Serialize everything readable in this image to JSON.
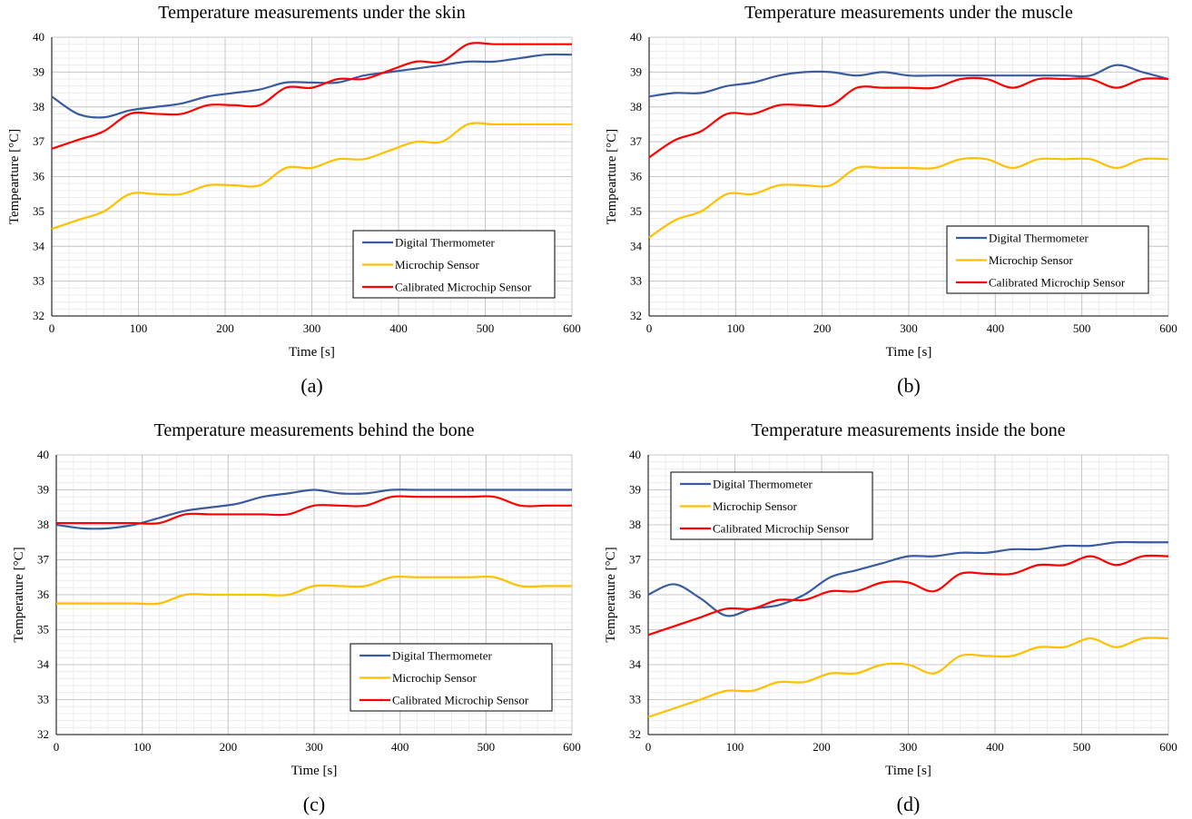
{
  "series_colors": [
    "#3a5ba0",
    "#ffc000",
    "#ff0000"
  ],
  "chart_data": [
    {
      "type": "line",
      "panel_label": "(a)",
      "title": "Temperature measurements under the skin",
      "xlabel": "Time [s]",
      "ylabel": "Tempearture [°C]",
      "xlim": [
        0,
        600
      ],
      "ylim": [
        32,
        40
      ],
      "xticks": [
        0,
        100,
        200,
        300,
        400,
        500,
        600
      ],
      "yticks": [
        32,
        33,
        34,
        35,
        36,
        37,
        38,
        39,
        40
      ],
      "grid": true,
      "legend": "bottom-right",
      "series": [
        {
          "name": "Digital Thermometer",
          "x": [
            0,
            30,
            60,
            90,
            120,
            150,
            180,
            210,
            240,
            270,
            300,
            330,
            360,
            390,
            420,
            450,
            480,
            510,
            540,
            570,
            600
          ],
          "y": [
            38.3,
            37.8,
            37.7,
            37.9,
            38.0,
            38.1,
            38.3,
            38.4,
            38.5,
            38.7,
            38.7,
            38.7,
            38.9,
            39.0,
            39.1,
            39.2,
            39.3,
            39.3,
            39.4,
            39.5,
            39.5
          ]
        },
        {
          "name": "Microchip Sensor",
          "x": [
            0,
            30,
            60,
            90,
            120,
            150,
            180,
            210,
            240,
            270,
            300,
            330,
            360,
            390,
            420,
            450,
            480,
            510,
            540,
            570,
            600
          ],
          "y": [
            34.5,
            34.75,
            35.0,
            35.5,
            35.5,
            35.5,
            35.75,
            35.75,
            35.75,
            36.25,
            36.25,
            36.5,
            36.5,
            36.75,
            37.0,
            37.0,
            37.5,
            37.5,
            37.5,
            37.5,
            37.5
          ]
        },
        {
          "name": "Calibrated Microchip Sensor",
          "x": [
            0,
            30,
            60,
            90,
            120,
            150,
            180,
            210,
            240,
            270,
            300,
            330,
            360,
            390,
            420,
            450,
            480,
            510,
            540,
            570,
            600
          ],
          "y": [
            36.8,
            37.05,
            37.3,
            37.8,
            37.8,
            37.8,
            38.05,
            38.05,
            38.05,
            38.55,
            38.55,
            38.8,
            38.8,
            39.05,
            39.3,
            39.3,
            39.8,
            39.8,
            39.8,
            39.8,
            39.8
          ]
        }
      ]
    },
    {
      "type": "line",
      "panel_label": "(b)",
      "title": "Temperature measurements under the muscle",
      "xlabel": "Time [s]",
      "ylabel": "Tempearture [°C]",
      "xlim": [
        0,
        600
      ],
      "ylim": [
        32,
        40
      ],
      "xticks": [
        0,
        100,
        200,
        300,
        400,
        500,
        600
      ],
      "yticks": [
        32,
        33,
        34,
        35,
        36,
        37,
        38,
        39,
        40
      ],
      "grid": true,
      "legend": "bottom-right",
      "series": [
        {
          "name": "Digital Thermometer",
          "x": [
            0,
            30,
            60,
            90,
            120,
            150,
            180,
            210,
            240,
            270,
            300,
            330,
            360,
            390,
            420,
            450,
            480,
            510,
            540,
            570,
            600
          ],
          "y": [
            38.3,
            38.4,
            38.4,
            38.6,
            38.7,
            38.9,
            39.0,
            39.0,
            38.9,
            39.0,
            38.9,
            38.9,
            38.9,
            38.9,
            38.9,
            38.9,
            38.9,
            38.9,
            39.2,
            39.0,
            38.8
          ]
        },
        {
          "name": "Microchip Sensor",
          "x": [
            0,
            30,
            60,
            90,
            120,
            150,
            180,
            210,
            240,
            270,
            300,
            330,
            360,
            390,
            420,
            450,
            480,
            510,
            540,
            570,
            600
          ],
          "y": [
            34.25,
            34.75,
            35.0,
            35.5,
            35.5,
            35.75,
            35.75,
            35.75,
            36.25,
            36.25,
            36.25,
            36.25,
            36.5,
            36.5,
            36.25,
            36.5,
            36.5,
            36.5,
            36.25,
            36.5,
            36.5
          ]
        },
        {
          "name": "Calibrated Microchip Sensor",
          "x": [
            0,
            30,
            60,
            90,
            120,
            150,
            180,
            210,
            240,
            270,
            300,
            330,
            360,
            390,
            420,
            450,
            480,
            510,
            540,
            570,
            600
          ],
          "y": [
            36.55,
            37.05,
            37.3,
            37.8,
            37.8,
            38.05,
            38.05,
            38.05,
            38.55,
            38.55,
            38.55,
            38.55,
            38.8,
            38.8,
            38.55,
            38.8,
            38.8,
            38.8,
            38.55,
            38.8,
            38.8
          ]
        }
      ]
    },
    {
      "type": "line",
      "panel_label": "(c)",
      "title": "Temperature measurements behind the bone",
      "xlabel": "Time [s]",
      "ylabel": "Temperature [°C]",
      "xlim": [
        0,
        600
      ],
      "ylim": [
        32,
        40
      ],
      "xticks": [
        0,
        100,
        200,
        300,
        400,
        500,
        600
      ],
      "yticks": [
        32,
        33,
        34,
        35,
        36,
        37,
        38,
        39,
        40
      ],
      "grid": true,
      "legend": "bottom-right",
      "series": [
        {
          "name": "Digital Thermometer",
          "x": [
            0,
            30,
            60,
            90,
            120,
            150,
            180,
            210,
            240,
            270,
            300,
            330,
            360,
            390,
            420,
            450,
            480,
            510,
            540,
            570,
            600
          ],
          "y": [
            38.0,
            37.9,
            37.9,
            38.0,
            38.2,
            38.4,
            38.5,
            38.6,
            38.8,
            38.9,
            39.0,
            38.9,
            38.9,
            39.0,
            39.0,
            39.0,
            39.0,
            39.0,
            39.0,
            39.0,
            39.0
          ]
        },
        {
          "name": "Microchip Sensor",
          "x": [
            0,
            30,
            60,
            90,
            120,
            150,
            180,
            210,
            240,
            270,
            300,
            330,
            360,
            390,
            420,
            450,
            480,
            510,
            540,
            570,
            600
          ],
          "y": [
            35.75,
            35.75,
            35.75,
            35.75,
            35.75,
            36.0,
            36.0,
            36.0,
            36.0,
            36.0,
            36.25,
            36.25,
            36.25,
            36.5,
            36.5,
            36.5,
            36.5,
            36.5,
            36.25,
            36.25,
            36.25
          ]
        },
        {
          "name": "Calibrated Microchip Sensor",
          "x": [
            0,
            30,
            60,
            90,
            120,
            150,
            180,
            210,
            240,
            270,
            300,
            330,
            360,
            390,
            420,
            450,
            480,
            510,
            540,
            570,
            600
          ],
          "y": [
            38.05,
            38.05,
            38.05,
            38.05,
            38.05,
            38.3,
            38.3,
            38.3,
            38.3,
            38.3,
            38.55,
            38.55,
            38.55,
            38.8,
            38.8,
            38.8,
            38.8,
            38.8,
            38.55,
            38.55,
            38.55
          ]
        }
      ]
    },
    {
      "type": "line",
      "panel_label": "(d)",
      "title": "Temperature measurements inside the bone",
      "xlabel": "Time [s]",
      "ylabel": "Temperature [°C]",
      "xlim": [
        0,
        600
      ],
      "ylim": [
        32,
        40
      ],
      "xticks": [
        0,
        100,
        200,
        300,
        400,
        500,
        600
      ],
      "yticks": [
        32,
        33,
        34,
        35,
        36,
        37,
        38,
        39,
        40
      ],
      "grid": true,
      "legend": "top-left",
      "series": [
        {
          "name": "Digital Thermometer",
          "x": [
            0,
            30,
            60,
            90,
            120,
            150,
            180,
            210,
            240,
            270,
            300,
            330,
            360,
            390,
            420,
            450,
            480,
            510,
            540,
            570,
            600
          ],
          "y": [
            36.0,
            36.3,
            35.9,
            35.4,
            35.6,
            35.7,
            36.0,
            36.5,
            36.7,
            36.9,
            37.1,
            37.1,
            37.2,
            37.2,
            37.3,
            37.3,
            37.4,
            37.4,
            37.5,
            37.5,
            37.5
          ]
        },
        {
          "name": "Microchip Sensor",
          "x": [
            0,
            30,
            60,
            90,
            120,
            150,
            180,
            210,
            240,
            270,
            300,
            330,
            360,
            390,
            420,
            450,
            480,
            510,
            540,
            570,
            600
          ],
          "y": [
            32.5,
            32.75,
            33.0,
            33.25,
            33.25,
            33.5,
            33.5,
            33.75,
            33.75,
            34.0,
            34.0,
            33.75,
            34.25,
            34.25,
            34.25,
            34.5,
            34.5,
            34.75,
            34.5,
            34.75,
            34.75
          ]
        },
        {
          "name": "Calibrated Microchip Sensor",
          "x": [
            0,
            30,
            60,
            90,
            120,
            150,
            180,
            210,
            240,
            270,
            300,
            330,
            360,
            390,
            420,
            450,
            480,
            510,
            540,
            570,
            600
          ],
          "y": [
            34.85,
            35.1,
            35.35,
            35.6,
            35.6,
            35.85,
            35.85,
            36.1,
            36.1,
            36.35,
            36.35,
            36.1,
            36.6,
            36.6,
            36.6,
            36.85,
            36.85,
            37.1,
            36.85,
            37.1,
            37.1
          ]
        }
      ]
    }
  ]
}
